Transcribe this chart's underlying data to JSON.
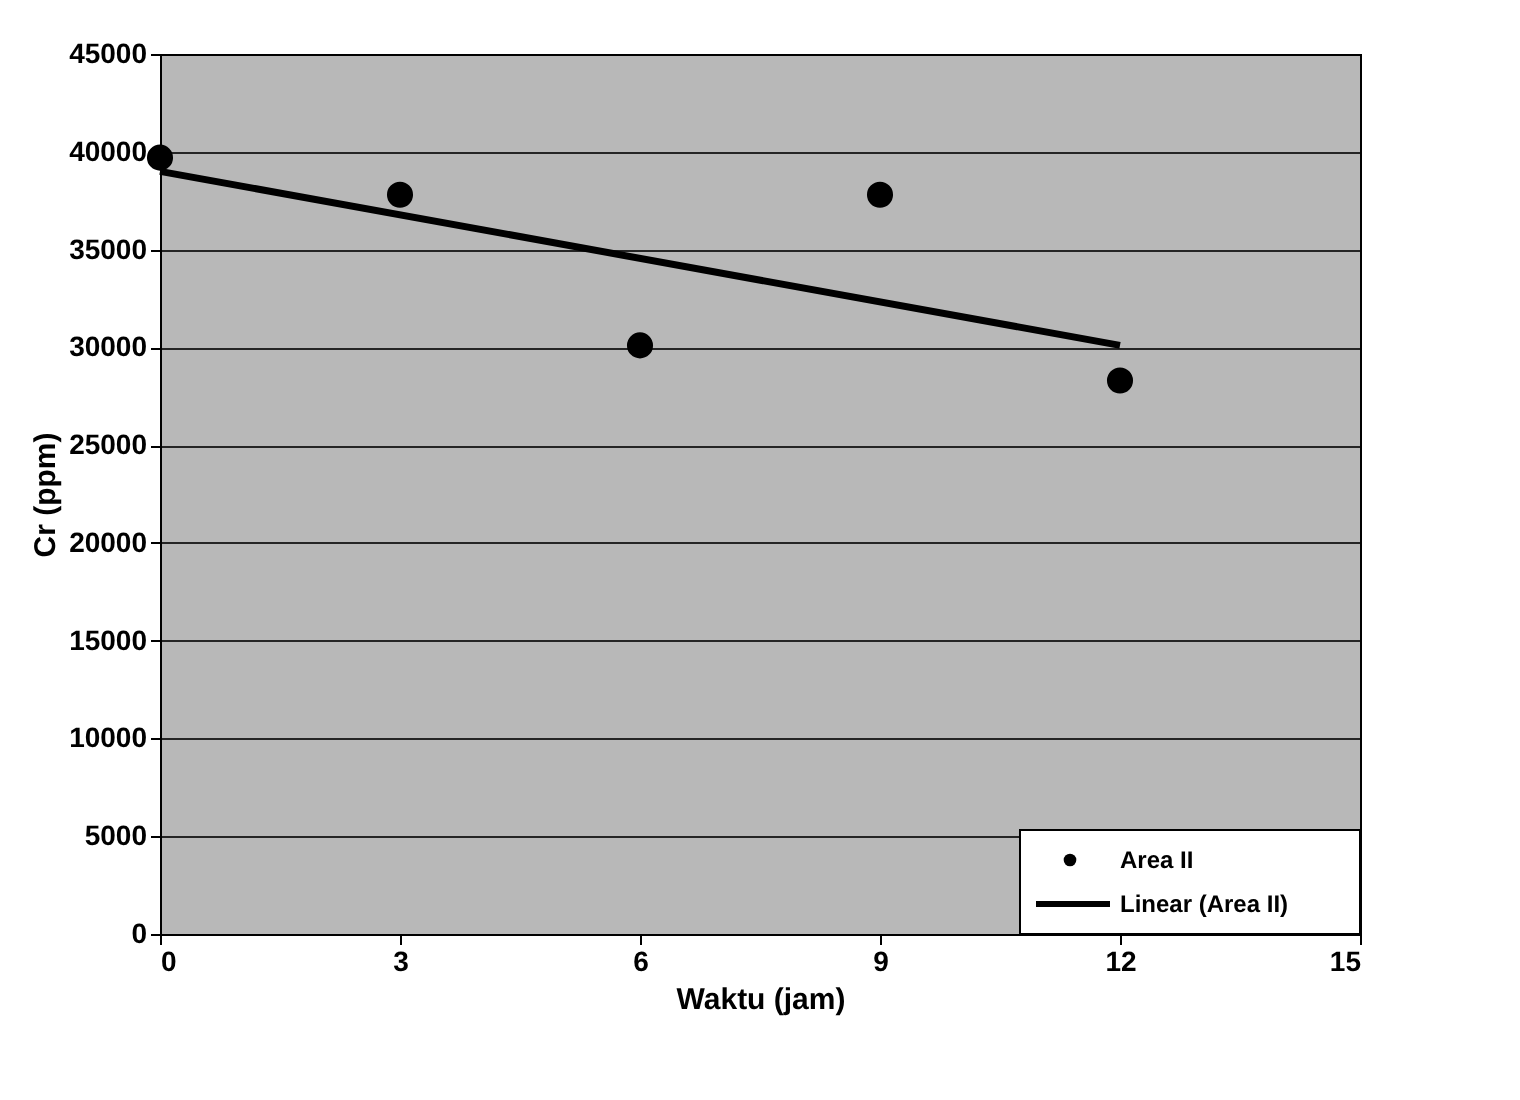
{
  "chart_data": {
    "type": "scatter",
    "xlabel": "Waktu (jam)",
    "ylabel": "Cr (ppm)",
    "xlim": [
      0,
      15
    ],
    "xticks": [
      0,
      3,
      6,
      9,
      12,
      15
    ],
    "ylim": [
      0,
      45000
    ],
    "yticks": [
      0,
      5000,
      10000,
      15000,
      20000,
      25000,
      30000,
      35000,
      40000,
      45000
    ],
    "grid": "y",
    "legend": "bottom right",
    "series": [
      {
        "name": "Area II",
        "marker": "circle",
        "color": "#000000",
        "x": [
          0,
          3,
          6,
          9,
          12
        ],
        "values": [
          39700,
          37800,
          30100,
          37800,
          28300
        ]
      },
      {
        "name": "Linear (Area II)",
        "type": "line",
        "color": "#000000",
        "line_style": "solid",
        "x": [
          0,
          12
        ],
        "values": [
          39000,
          30100
        ]
      }
    ]
  }
}
